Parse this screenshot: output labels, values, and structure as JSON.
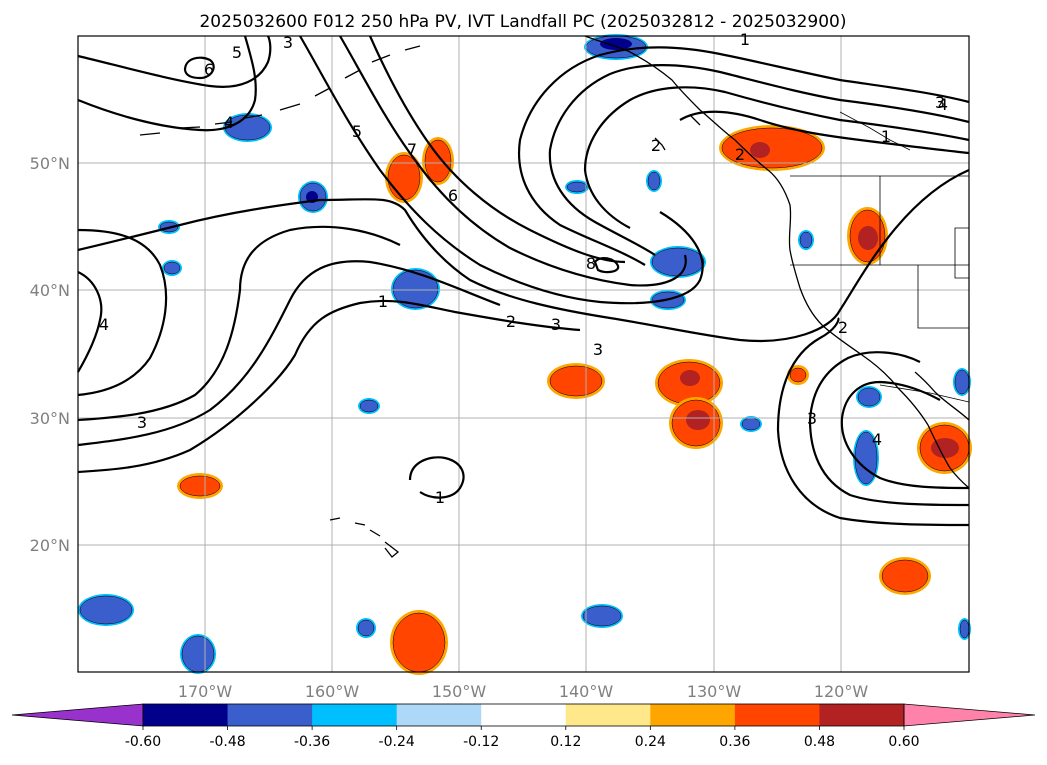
{
  "title": "2025032600 F012 250 hPa PV, IVT Landfall PC (2025032812 - 2025032900)",
  "map": {
    "lon_labels": [
      "170°W",
      "160°W",
      "150°W",
      "140°W",
      "130°W",
      "120°W"
    ],
    "lat_labels": [
      "50°N",
      "40°N",
      "30°N",
      "20°N"
    ],
    "contour_labels": [
      "1",
      "2",
      "3",
      "4",
      "5",
      "6",
      "7",
      "8"
    ],
    "contour_label_instances": [
      "1",
      "2",
      "3",
      "3",
      "4",
      "5",
      "6",
      "7",
      "8",
      "1",
      "2",
      "3",
      "4",
      "5",
      "6",
      "1",
      "2",
      "4",
      "3",
      "2",
      "3",
      "4",
      "1",
      "3"
    ]
  },
  "colorbar": {
    "levels": [
      "-0.60",
      "-0.48",
      "-0.36",
      "-0.24",
      "-0.12",
      "0.12",
      "0.24",
      "0.36",
      "0.48",
      "0.60"
    ],
    "colors": [
      "#9932cc",
      "#00008b",
      "#3a5fcd",
      "#00bfff",
      "#add8f7",
      "#ffffff",
      "#ffe88a",
      "#ffa500",
      "#ff4500",
      "#b22222",
      "#ff82ab"
    ]
  },
  "colors": {
    "negative_fill": "#3a5fcd",
    "negative_edge": "#00bfff",
    "positive_fill": "#ff4500",
    "positive_edge": "#ffa500",
    "strong_positive": "#b22222",
    "strong_negative": "#00008b"
  }
}
